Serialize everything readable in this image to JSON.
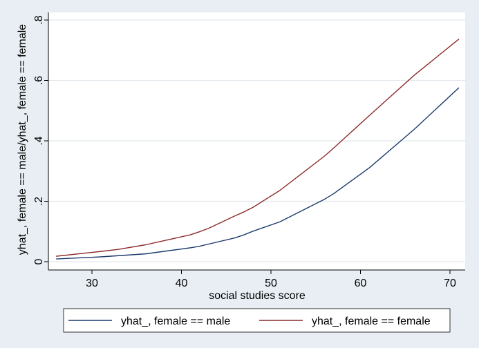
{
  "chart_data": {
    "type": "line",
    "xlabel": "social studies score",
    "ylabel": "yhat_, female == male/yhat_, female == female",
    "xlim": [
      26,
      71
    ],
    "ylim": [
      0,
      0.8
    ],
    "x_ticks": [
      30,
      40,
      50,
      60,
      70
    ],
    "x_tick_labels": [
      "30",
      "40",
      "50",
      "60",
      "70"
    ],
    "y_ticks": [
      0,
      0.2,
      0.4,
      0.6,
      0.8
    ],
    "y_tick_labels": [
      "0",
      ".2",
      ".4",
      ".6",
      ".8"
    ],
    "grid": "horizontal",
    "legend_position": "bottom",
    "x": [
      26,
      31,
      33,
      36,
      41,
      42,
      43,
      46,
      47,
      48,
      51,
      56,
      57,
      61,
      66,
      71
    ],
    "series": [
      {
        "name": "yhat_, female == male",
        "color": "#1a3a6b",
        "values": [
          0.009,
          0.016,
          0.02,
          0.026,
          0.046,
          0.051,
          0.058,
          0.079,
          0.089,
          0.101,
          0.132,
          0.207,
          0.225,
          0.311,
          0.438,
          0.576
        ]
      },
      {
        "name": "yhat_, female == female",
        "color": "#8b2a2a",
        "values": [
          0.018,
          0.034,
          0.041,
          0.056,
          0.089,
          0.099,
          0.11,
          0.152,
          0.165,
          0.18,
          0.236,
          0.35,
          0.376,
          0.484,
          0.617,
          0.737
        ]
      }
    ]
  }
}
